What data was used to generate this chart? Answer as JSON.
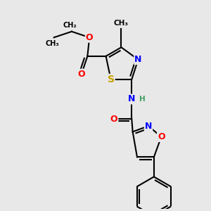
{
  "background_color": "#e8e8e8",
  "atom_colors": {
    "S": "#c8a000",
    "N": "#0000ff",
    "O": "#ff0000",
    "H": "#40a060",
    "C": "#000000"
  },
  "bond_color": "#000000",
  "bond_width": 1.5,
  "dpi": 100,
  "figsize": [
    3.0,
    3.0
  ],
  "xlim": [
    0.0,
    10.0
  ],
  "ylim": [
    0.0,
    10.5
  ]
}
